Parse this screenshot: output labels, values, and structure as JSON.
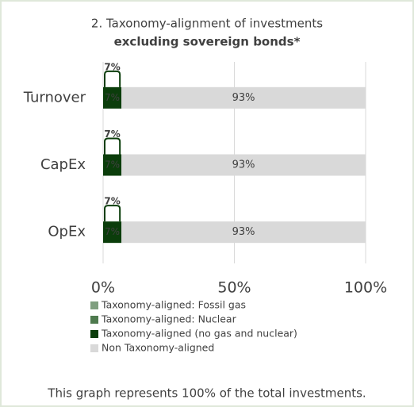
{
  "chart_data": {
    "type": "stacked-barh",
    "title": "2. Taxonomy-alignment of investments",
    "subtitle": "excluding sovereign bonds*",
    "categories": [
      "Turnover",
      "CapEx",
      "OpEx"
    ],
    "series": [
      {
        "name": "Taxonomy-aligned: Fossil gas",
        "color": "#7f9f7f",
        "values": [
          0,
          0,
          0
        ]
      },
      {
        "name": "Taxonomy-aligned: Nuclear",
        "color": "#4e7a4e",
        "values": [
          0,
          0,
          0
        ]
      },
      {
        "name": "Taxonomy-aligned (no gas and nuclear)",
        "color": "#0b3d0b",
        "values": [
          7,
          7,
          7
        ],
        "value_labels": [
          "7%",
          "7%",
          "7%"
        ]
      },
      {
        "name": "Non Taxonomy-aligned",
        "color": "#d9d9d9",
        "values": [
          93,
          93,
          93
        ],
        "value_labels": [
          "93%",
          "93%",
          "93%"
        ]
      }
    ],
    "xlim": [
      0,
      100
    ],
    "xticks": [
      {
        "value": 0,
        "label": "0%"
      },
      {
        "value": 50,
        "label": "50%"
      },
      {
        "value": 100,
        "label": "100%"
      }
    ],
    "grid": true,
    "footnote": "This graph represents 100% of the total investments."
  }
}
